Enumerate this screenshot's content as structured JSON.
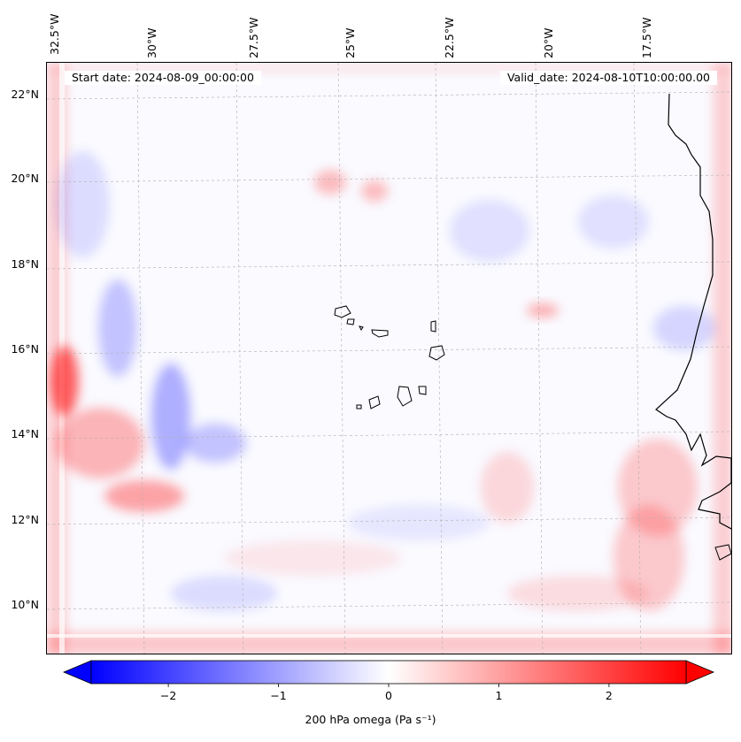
{
  "map": {
    "start_label": "Start date: 2024-08-09_00:00:00",
    "valid_label": "Valid_date: 2024-08-10T10:00:00.00",
    "lon_labels": [
      "32.5°W",
      "30°W",
      "27.5°W",
      "25°W",
      "22.5°W",
      "20°W",
      "17.5°W"
    ],
    "lat_labels": [
      "22°N",
      "20°N",
      "18°N",
      "16°N",
      "14°N",
      "12°N",
      "10°N"
    ],
    "extent": {
      "lon_min": -32.7,
      "lon_max": -15.6,
      "lat_min": 8.9,
      "lat_max": 22.8
    },
    "field_name": "200 hPa omega",
    "positive_color": "#ff0000",
    "negative_color": "#0000ff",
    "coastline_color": "#000000",
    "gridline_color": "#b0b0b0"
  },
  "colorbar": {
    "label": "200 hPa omega (Pa s⁻¹)",
    "vmin": -2.7,
    "vmax": 2.7,
    "ticks": [
      -2,
      -1,
      0,
      1,
      2
    ],
    "tick_labels": [
      "−2",
      "−1",
      "0",
      "1",
      "2"
    ],
    "extend": "both"
  }
}
